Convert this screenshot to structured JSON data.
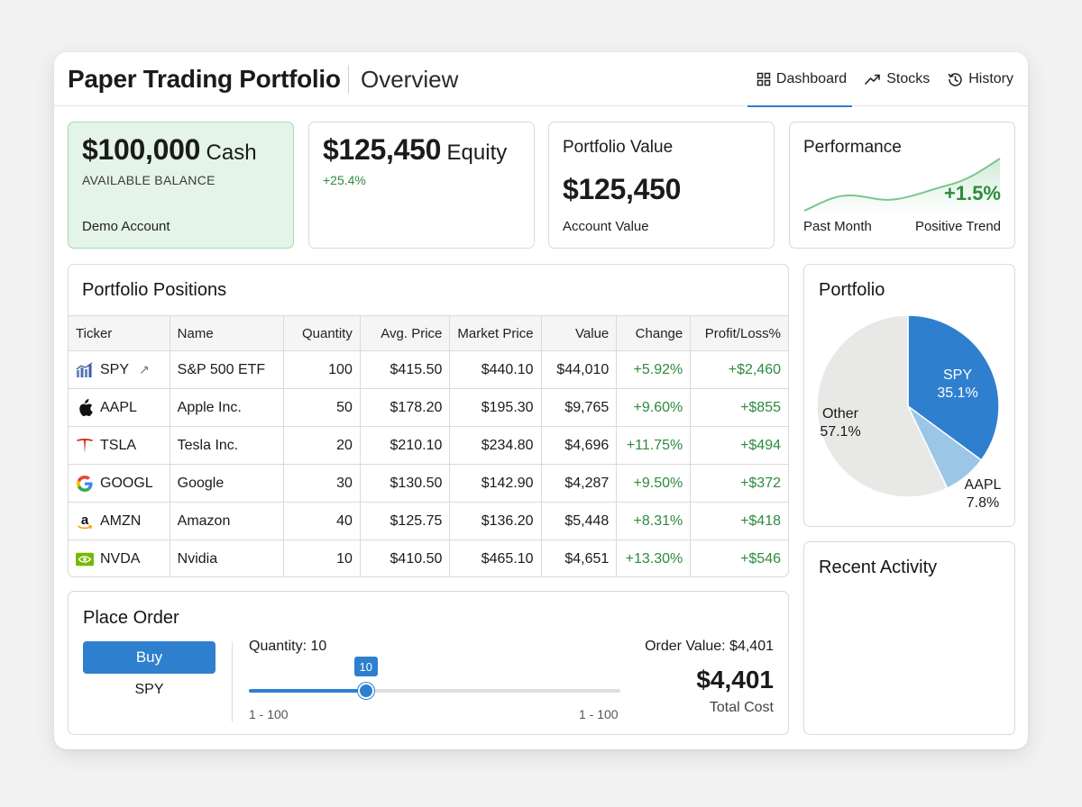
{
  "header": {
    "app_title": "Paper Trading Portfolio",
    "page_title": "Overview",
    "nav": [
      {
        "label": "Dashboard",
        "icon": "dashboard-grid-icon",
        "active": true
      },
      {
        "label": "Stocks",
        "icon": "trend-up-icon",
        "active": false
      },
      {
        "label": "History",
        "icon": "history-clock-icon",
        "active": false
      }
    ]
  },
  "summary": {
    "cash": {
      "amount": "$100,000",
      "suffix": "Cash",
      "sub": "AVAILABLE BALANCE",
      "foot": "Demo Account"
    },
    "equity": {
      "amount": "$125,450",
      "suffix": "Equity",
      "change": "+25.4%"
    },
    "portfolio_value": {
      "label": "Portfolio Value",
      "amount": "$125,450",
      "foot": "Account Value"
    },
    "performance": {
      "label": "Performance",
      "pct": "+1.5%",
      "foot_left": "Past Month",
      "foot_right": "Positive Trend"
    }
  },
  "positions": {
    "title": "Portfolio Positions",
    "columns": [
      "Ticker",
      "Name",
      "Quantity",
      "Avg. Price",
      "Market Price",
      "Value",
      "Change",
      "Profit/Loss%"
    ],
    "rows": [
      {
        "ticker": "SPY",
        "logo": "spy-chart-logo-icon",
        "name": "S&P 500 ETF",
        "qty": "100",
        "avg": "$415.50",
        "mkt": "$440.10",
        "value": "$44,010",
        "change": "+5.92%",
        "pl": "+$2,460"
      },
      {
        "ticker": "AAPL",
        "logo": "apple-logo-icon",
        "name": "Apple Inc.",
        "qty": "50",
        "avg": "$178.20",
        "mkt": "$195.30",
        "value": "$9,765",
        "change": "+9.60%",
        "pl": "+$855"
      },
      {
        "ticker": "TSLA",
        "logo": "tesla-logo-icon",
        "name": "Tesla Inc.",
        "qty": "20",
        "avg": "$210.10",
        "mkt": "$234.80",
        "value": "$4,696",
        "change": "+11.75%",
        "pl": "+$494"
      },
      {
        "ticker": "GOOGL",
        "logo": "google-logo-icon",
        "name": "Google",
        "qty": "30",
        "avg": "$130.50",
        "mkt": "$142.90",
        "value": "$4,287",
        "change": "+9.50%",
        "pl": "+$372"
      },
      {
        "ticker": "AMZN",
        "logo": "amazon-logo-icon",
        "name": "Amazon",
        "qty": "40",
        "avg": "$125.75",
        "mkt": "$136.20",
        "value": "$5,448",
        "change": "+8.31%",
        "pl": "+$418"
      },
      {
        "ticker": "NVDA",
        "logo": "nvidia-logo-icon",
        "name": "Nvidia",
        "qty": "10",
        "avg": "$410.50",
        "mkt": "$465.10",
        "value": "$4,651",
        "change": "+13.30%",
        "pl": "+$546"
      }
    ]
  },
  "order": {
    "title": "Place Order",
    "buy_label": "Buy",
    "ticker": "SPY",
    "quantity_label": "Quantity: 10",
    "quantity": 10,
    "min": 1,
    "max": 100,
    "bubble": "10",
    "range_left": "1 - 100",
    "range_right": "1 - 100",
    "order_value_label": "Order Value: $4,401",
    "total_amount": "$4,401",
    "total_label": "Total Cost"
  },
  "allocation": {
    "title": "Portfolio",
    "slices": [
      {
        "label": "SPY",
        "pct_text": "35.1%",
        "value": 35.1,
        "color": "#2f7fcf",
        "text_color": "#ffffff"
      },
      {
        "label": "AAPL",
        "pct_text": "7.8%",
        "value": 7.8,
        "color": "#9cc6e6",
        "text_color": "#1b1b1b"
      },
      {
        "label": "Other",
        "pct_text": "57.1%",
        "value": 57.1,
        "color": "#e8e8e6",
        "text_color": "#1b1b1b"
      }
    ]
  },
  "activity": {
    "title": "Recent Activity"
  },
  "colors": {
    "accent": "#2f7fcf",
    "positive": "#2e8b3e",
    "cash_bg": "#e4f4e7"
  }
}
